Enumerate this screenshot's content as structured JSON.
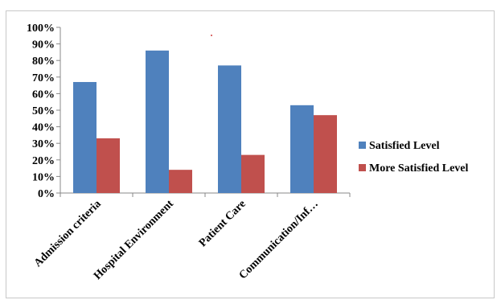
{
  "chart_data": {
    "type": "bar",
    "categories": [
      "Admission criteria",
      "Hospital Environment",
      "Patient Care",
      "Communication/Inf…"
    ],
    "series": [
      {
        "name": "Satisfied Level",
        "values": [
          67,
          86,
          77,
          53
        ],
        "color": "#4F81BD"
      },
      {
        "name": "More Satisfied Level",
        "values": [
          33,
          14,
          23,
          47
        ],
        "color": "#C0504D"
      }
    ],
    "y_ticks": [
      "0%",
      "10%",
      "20%",
      "30%",
      "40%",
      "50%",
      "60%",
      "70%",
      "80%",
      "90%",
      "100%"
    ],
    "ylim": [
      0,
      100
    ],
    "grid": false,
    "legend_position": "right",
    "title": "",
    "xlabel": "",
    "ylabel": ""
  }
}
